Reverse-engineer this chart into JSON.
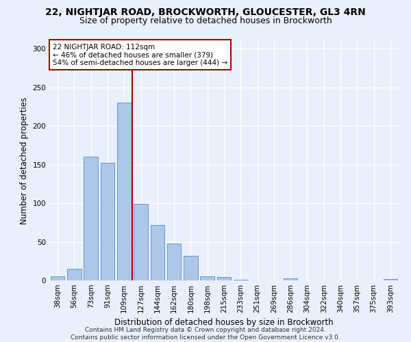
{
  "title_line1": "22, NIGHTJAR ROAD, BROCKWORTH, GLOUCESTER, GL3 4RN",
  "title_line2": "Size of property relative to detached houses in Brockworth",
  "xlabel": "Distribution of detached houses by size in Brockworth",
  "ylabel": "Number of detached properties",
  "categories": [
    "38sqm",
    "56sqm",
    "73sqm",
    "91sqm",
    "109sqm",
    "127sqm",
    "144sqm",
    "162sqm",
    "180sqm",
    "198sqm",
    "215sqm",
    "233sqm",
    "251sqm",
    "269sqm",
    "286sqm",
    "304sqm",
    "322sqm",
    "340sqm",
    "357sqm",
    "375sqm",
    "393sqm"
  ],
  "values": [
    5,
    15,
    160,
    152,
    230,
    99,
    72,
    48,
    32,
    5,
    4,
    1,
    0,
    0,
    3,
    0,
    0,
    0,
    0,
    0,
    2
  ],
  "bar_color": "#aec6e8",
  "bar_edge_color": "#5b9bd5",
  "background_color": "#eaf0fb",
  "grid_color": "#ffffff",
  "redline_x": 4.5,
  "annotation_text_line1": "22 NIGHTJAR ROAD: 112sqm",
  "annotation_text_line2": "← 46% of detached houses are smaller (379)",
  "annotation_text_line3": "54% of semi-detached houses are larger (444) →",
  "annotation_box_color": "#ffffff",
  "annotation_box_edge_color": "#aa0000",
  "redline_color": "#aa0000",
  "ylim": [
    0,
    310
  ],
  "yticks": [
    0,
    50,
    100,
    150,
    200,
    250,
    300
  ],
  "footer_line1": "Contains HM Land Registry data © Crown copyright and database right 2024.",
  "footer_line2": "Contains public sector information licensed under the Open Government Licence v3.0.",
  "title_fontsize": 10,
  "subtitle_fontsize": 9,
  "axis_label_fontsize": 8.5,
  "tick_fontsize": 7.5,
  "annotation_fontsize": 7.5,
  "footer_fontsize": 6.5
}
